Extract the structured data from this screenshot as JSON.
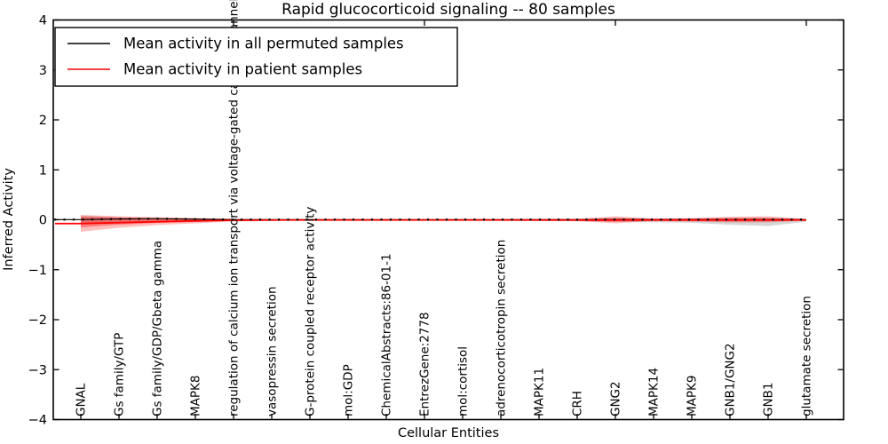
{
  "title": "Rapid glucocorticoid signaling -- 80 samples",
  "legend": {
    "items": [
      {
        "label": "Mean activity in all permuted samples",
        "color": "#000000"
      },
      {
        "label": "Mean activity in patient samples",
        "color": "#ff0000"
      }
    ]
  },
  "chart_data": {
    "type": "line",
    "title": "Rapid glucocorticoid signaling -- 80 samples",
    "xlabel": "Cellular Entities",
    "ylabel": "Inferred Activity",
    "ylim": [
      -4,
      4
    ],
    "grid": false,
    "legend_position": "upper left",
    "yticks": [
      {
        "label": "4",
        "value": 4
      },
      {
        "label": "3",
        "value": 3
      },
      {
        "label": "2",
        "value": 2
      },
      {
        "label": "1",
        "value": 1
      },
      {
        "label": "0",
        "value": 0
      },
      {
        "label": "−1",
        "value": -1
      },
      {
        "label": "−2",
        "value": -2
      },
      {
        "label": "−3",
        "value": -3
      },
      {
        "label": "−4",
        "value": -4
      }
    ],
    "categories": [
      "GNAL",
      "Gs family/GTP",
      "Gs family/GDP/Gbeta gamma",
      "MAPK8",
      "regulation of calcium ion transport via voltage-gated calcium channel activity",
      "vasopressin secretion",
      "G-protein coupled receptor activity",
      "mol:GDP",
      "ChemicalAbstracts:86-01-1",
      "EntrezGene:2778",
      "mol:cortisol",
      "adrenocorticotropin secretion",
      "MAPK11",
      "CRH",
      "GNG2",
      "MAPK14",
      "MAPK9",
      "GNB1/GNG2",
      "GNB1",
      "glutamate secretion"
    ],
    "series": [
      {
        "name": "Mean activity in all permuted samples",
        "color": "#000000",
        "marker": "dot",
        "values": [
          0.004,
          0.016,
          0.022,
          0.012,
          0.004,
          0.004,
          0.004,
          0.004,
          0.004,
          0.004,
          0.004,
          0.004,
          0.004,
          0.004,
          0.006,
          0.004,
          0.004,
          0.004,
          0.004,
          0.004
        ]
      },
      {
        "name": "Mean activity in patient samples",
        "color": "#ff0000",
        "marker": "none",
        "values": [
          -0.076,
          -0.058,
          -0.04,
          -0.022,
          -0.01,
          -0.006,
          -0.005,
          -0.005,
          -0.005,
          -0.005,
          -0.005,
          -0.005,
          -0.005,
          -0.005,
          -0.006,
          -0.005,
          -0.005,
          -0.005,
          -0.005,
          -0.005
        ]
      }
    ],
    "bands": [
      {
        "name": "permuted-samples-std",
        "color": "#999999",
        "opacity": 0.4,
        "upper": [
          0.08,
          0.05,
          0.03,
          0.02,
          0.012,
          0.012,
          0.012,
          0.012,
          0.012,
          0.012,
          0.012,
          0.012,
          0.015,
          0.018,
          0.02,
          0.02,
          0.025,
          0.035,
          0.04,
          0.015
        ],
        "lower": [
          -0.08,
          -0.05,
          -0.03,
          -0.02,
          -0.015,
          -0.015,
          -0.015,
          -0.015,
          -0.015,
          -0.015,
          -0.015,
          -0.015,
          -0.02,
          -0.03,
          -0.04,
          -0.05,
          -0.06,
          -0.1,
          -0.125,
          -0.04
        ]
      },
      {
        "name": "patient-samples-std-outer",
        "color": "#ff0000",
        "opacity": 0.25,
        "upper": [
          0.098,
          0.071,
          0.053,
          0.036,
          0.018,
          0.012,
          0.009,
          0.008,
          0.008,
          0.008,
          0.008,
          0.008,
          0.012,
          0.018,
          0.071,
          0.027,
          0.036,
          0.062,
          0.071,
          0.018
        ],
        "lower": [
          -0.24,
          -0.16,
          -0.107,
          -0.071,
          -0.036,
          -0.024,
          -0.018,
          -0.018,
          -0.018,
          -0.018,
          -0.018,
          -0.02,
          -0.027,
          -0.027,
          -0.071,
          -0.027,
          -0.036,
          -0.053,
          -0.053,
          -0.018
        ]
      },
      {
        "name": "patient-samples-std-inner",
        "color": "#ff0000",
        "opacity": 0.35,
        "upper": [
          0.062,
          0.044,
          0.036,
          0.027,
          0.013,
          0.009,
          0.009,
          0.009,
          0.009,
          0.009,
          0.009,
          0.009,
          0.009,
          0.012,
          0.036,
          0.018,
          0.022,
          0.033,
          0.036,
          0.012
        ],
        "lower": [
          -0.151,
          -0.098,
          -0.062,
          -0.044,
          -0.024,
          -0.016,
          -0.016,
          -0.016,
          -0.016,
          -0.016,
          -0.016,
          -0.016,
          -0.018,
          -0.02,
          -0.036,
          -0.018,
          -0.027,
          -0.033,
          -0.033,
          -0.012
        ]
      }
    ]
  }
}
